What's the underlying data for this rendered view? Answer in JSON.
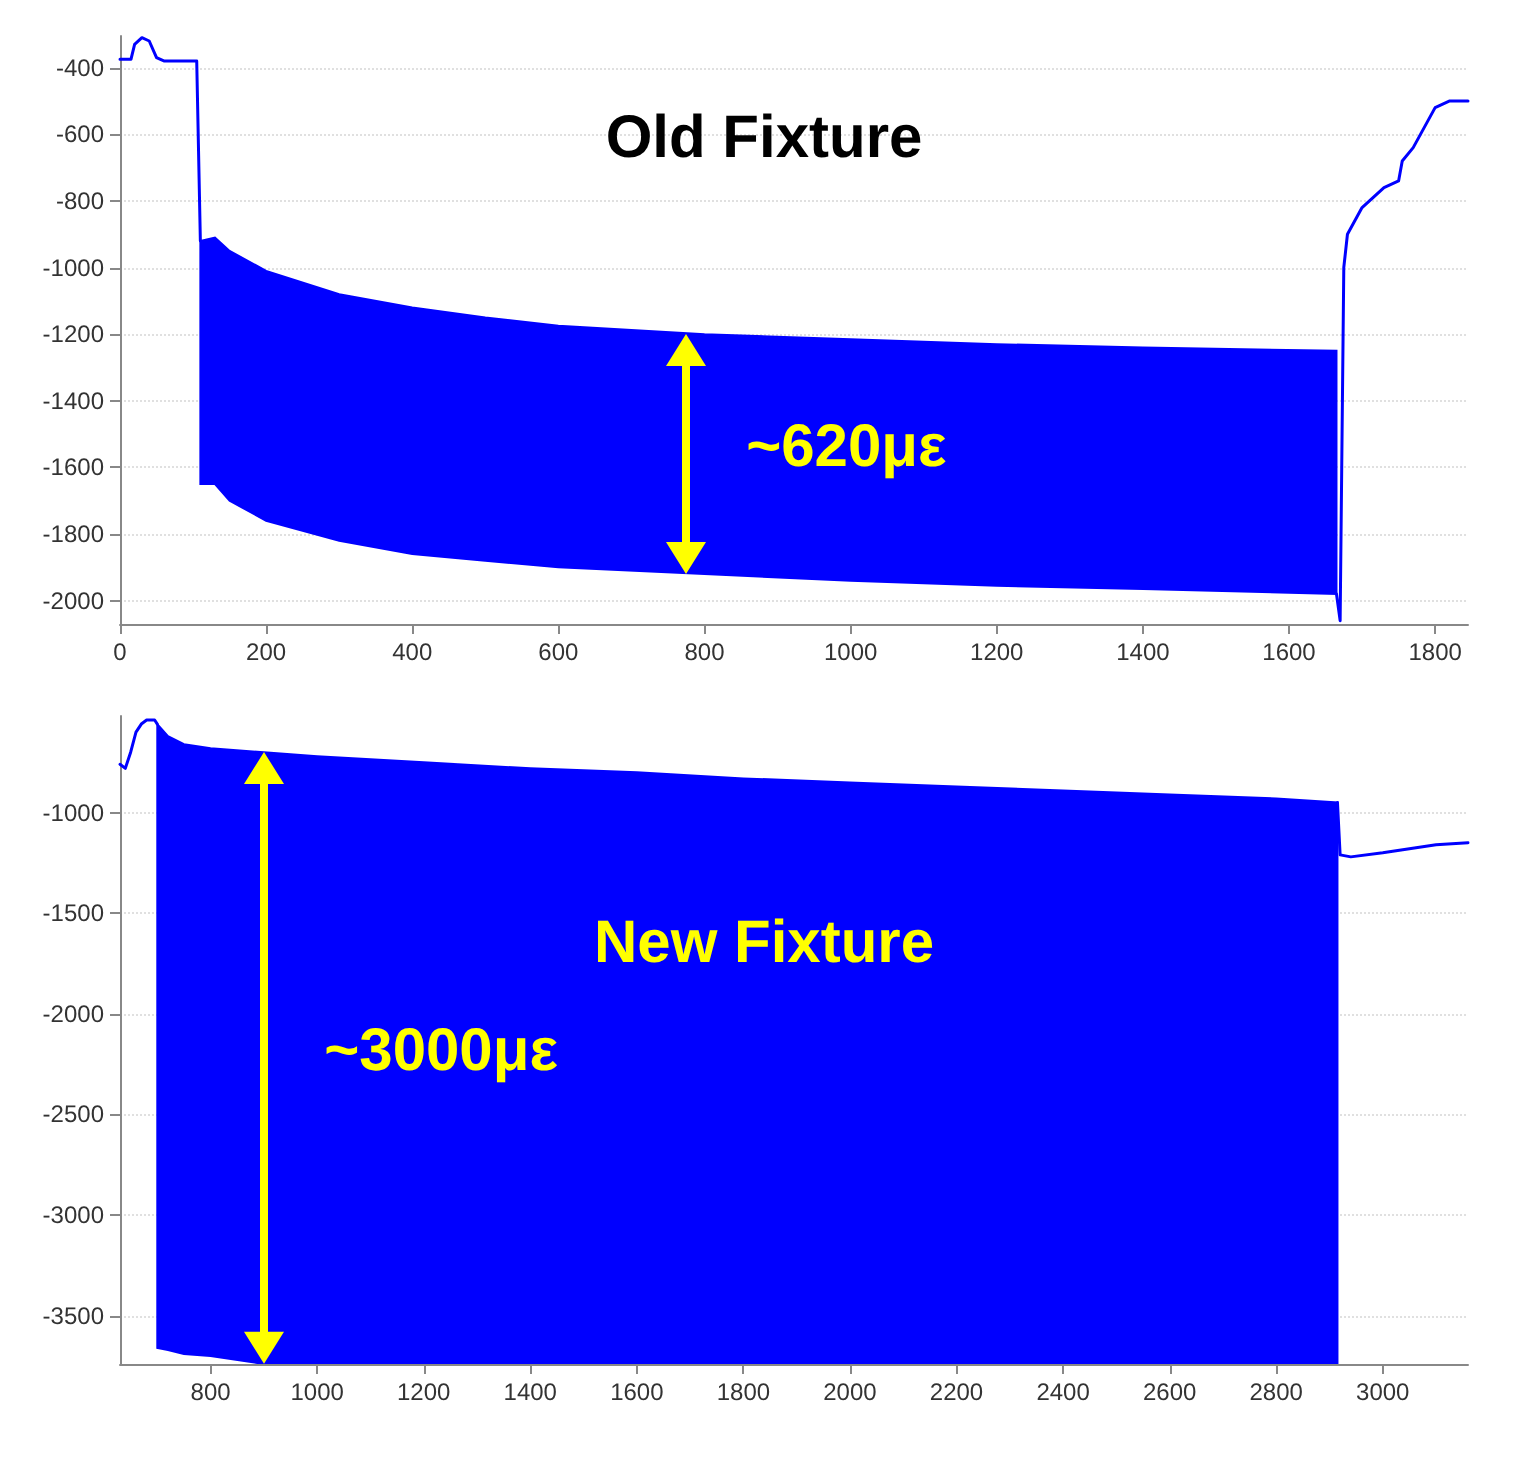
{
  "chart_data": [
    {
      "type": "line",
      "title": "Old Fixture",
      "xlim": [
        0,
        1845
      ],
      "ylim": [
        -2070,
        -305
      ],
      "xticks": [
        0,
        200,
        400,
        600,
        800,
        1000,
        1200,
        1400,
        1600,
        1800
      ],
      "yticks": [
        -2000,
        -1800,
        -1600,
        -1400,
        -1200,
        -1000,
        -800,
        -600,
        -400
      ],
      "grid": "y",
      "marker": "none",
      "line_style": "solid",
      "annotations": [
        "~620με"
      ],
      "series": [
        {
          "color": "#0000ff",
          "x": [
            0,
            15,
            20,
            30,
            40,
            50,
            60,
            105,
            110,
            130,
            150,
            200,
            300,
            400,
            500,
            600,
            800,
            1000,
            1200,
            1400,
            1665,
            1670,
            1675,
            1680,
            1700,
            1730,
            1750,
            1755,
            1770,
            1800,
            1820,
            1845
          ],
          "values": [
            -375,
            -375,
            -330,
            -310,
            -320,
            -370,
            -380,
            -380,
            -920,
            null,
            null,
            null,
            null,
            null,
            null,
            null,
            null,
            null,
            null,
            null,
            -1980,
            -2060,
            -1000,
            -900,
            -820,
            -760,
            -740,
            -680,
            -640,
            -520,
            -500,
            -500
          ],
          "upper": [
            null,
            null,
            null,
            null,
            null,
            null,
            null,
            null,
            -920,
            -910,
            -950,
            -1010,
            -1080,
            -1120,
            -1150,
            -1175,
            -1200,
            -1215,
            -1230,
            -1240,
            -1250,
            null,
            null,
            null,
            null,
            null,
            null,
            null,
            null,
            null,
            null,
            null
          ],
          "lower": [
            null,
            null,
            null,
            null,
            null,
            null,
            null,
            null,
            -1650,
            -1650,
            -1700,
            -1760,
            -1820,
            -1860,
            -1880,
            -1900,
            -1920,
            -1940,
            -1955,
            -1965,
            -1980,
            null,
            null,
            null,
            null,
            null,
            null,
            null,
            null,
            null,
            null,
            null
          ]
        }
      ]
    },
    {
      "type": "line",
      "title": "New Fixture",
      "xlim": [
        630,
        3160
      ],
      "ylim": [
        -3740,
        -520
      ],
      "xticks": [
        800,
        1000,
        1200,
        1400,
        1600,
        1800,
        2000,
        2200,
        2400,
        2600,
        2800,
        3000
      ],
      "yticks": [
        -3500,
        -3000,
        -2500,
        -2000,
        -1500,
        -1000
      ],
      "grid": "y",
      "marker": "none",
      "line_style": "solid",
      "annotations": [
        "~3000με"
      ],
      "series": [
        {
          "color": "#0000ff",
          "x": [
            630,
            640,
            650,
            660,
            670,
            680,
            695,
            700,
            720,
            750,
            800,
            900,
            1000,
            1200,
            1400,
            1600,
            1800,
            2000,
            2200,
            2400,
            2600,
            2800,
            2915,
            2920,
            2940,
            3000,
            3100,
            3160
          ],
          "values": [
            -760,
            -780,
            -700,
            -600,
            -560,
            -540,
            -540,
            -560,
            null,
            null,
            null,
            null,
            null,
            null,
            null,
            null,
            null,
            null,
            null,
            null,
            null,
            null,
            -950,
            -1210,
            -1220,
            -1200,
            -1160,
            -1150
          ],
          "upper": [
            null,
            null,
            null,
            null,
            null,
            null,
            null,
            -560,
            -620,
            -660,
            -680,
            -700,
            -720,
            -750,
            -780,
            -800,
            -830,
            -850,
            -870,
            -890,
            -910,
            -930,
            -950,
            null,
            null,
            null,
            null,
            null
          ],
          "lower": [
            null,
            null,
            null,
            null,
            null,
            null,
            null,
            -3660,
            -3670,
            -3690,
            -3700,
            -3740,
            -3740,
            -3740,
            -3740,
            -3740,
            -3740,
            -3740,
            -3740,
            -3740,
            -3740,
            -3740,
            -3740,
            null,
            null,
            null,
            null,
            null
          ]
        }
      ]
    }
  ]
}
